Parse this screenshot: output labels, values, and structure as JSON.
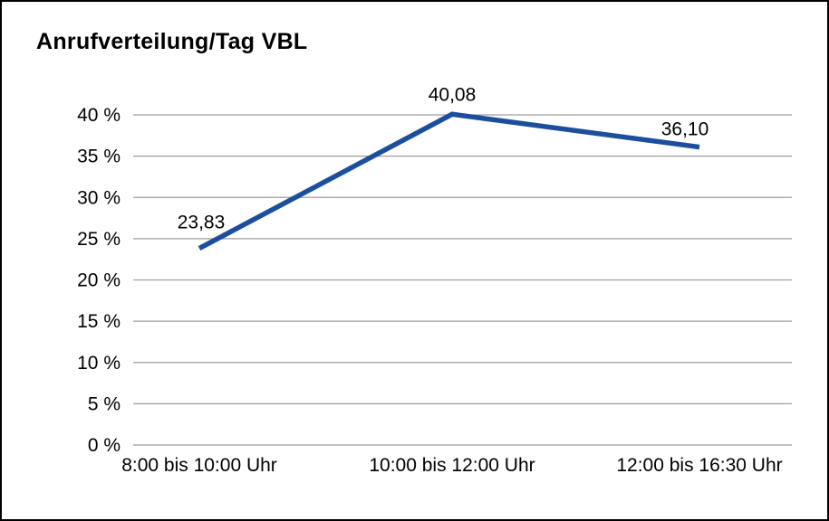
{
  "chart_data": {
    "type": "line",
    "title": "Anrufverteilung/Tag VBL",
    "categories": [
      "8:00 bis 10:00 Uhr",
      "10:00 bis 12:00 Uhr",
      "12:00 bis 16:30 Uhr"
    ],
    "values": [
      23.83,
      40.08,
      36.1
    ],
    "value_labels": [
      "23,83",
      "40,08",
      "36,10"
    ],
    "xlabel": "",
    "ylabel": "",
    "ylim": [
      0,
      40
    ],
    "ytick_step": 5,
    "ytick_labels": [
      "0 %",
      "5 %",
      "10 %",
      "15 %",
      "20 %",
      "25 %",
      "30 %",
      "35 %",
      "40 %"
    ],
    "grid": true,
    "legend": "none"
  },
  "colors": {
    "line": "#1b4f9d",
    "grid": "#9e9e9e",
    "text": "#000000",
    "border": "#000000",
    "background": "#ffffff"
  }
}
